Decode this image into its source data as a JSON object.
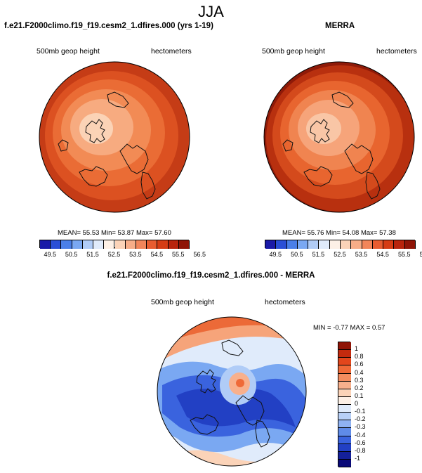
{
  "season": "JJA",
  "panels": {
    "model": {
      "title": "f.e21.F2000climo.f19_f19.cesm2_1.dfires.000 (yrs 1-19)",
      "field_label": "500mb geop height",
      "units_label": "hectometers",
      "stats": "MEAN=  55.53   Min=  53.87   Max=  57.60"
    },
    "obs": {
      "title": "MERRA",
      "field_label": "500mb geop height",
      "units_label": "hectometers",
      "stats": "MEAN=  55.76   Min=  54.08   Max=  57.38"
    },
    "diff": {
      "title": "f.e21.F2000climo.f19_f19.cesm2_1.dfires.000 - MERRA",
      "field_label": "500mb geop height",
      "units_label": "hectometers",
      "stats": "MIN =  -0.77  MAX =   0.57"
    }
  },
  "colorbar_abs": {
    "ticks": [
      "49.5",
      "50.5",
      "51.5",
      "52.5",
      "53.5",
      "54.5",
      "55.5",
      "56.5"
    ],
    "colors": [
      "#1a1aa8",
      "#2a4fd6",
      "#4a7fe8",
      "#7aa8f2",
      "#b0ccf7",
      "#e0ebfb",
      "#fdf0e6",
      "#fbd3b8",
      "#f7ad88",
      "#f2855a",
      "#e85c30",
      "#d53c14",
      "#b8240c",
      "#8f1406"
    ]
  },
  "colorbar_diff": {
    "ticks": [
      "1",
      "0.8",
      "0.6",
      "0.4",
      "0.3",
      "0.2",
      "0.1",
      "0",
      "-0.1",
      "-0.2",
      "-0.3",
      "-0.4",
      "-0.6",
      "-0.8",
      "-1"
    ],
    "colors": [
      "#8f1406",
      "#c32a0e",
      "#e2461c",
      "#ef6a38",
      "#f48d5f",
      "#f8b08c",
      "#fbd3b8",
      "#fdf0e6",
      "#e0ebfb",
      "#b8d0f7",
      "#8fb2f2",
      "#5f8be8",
      "#3a63de",
      "#2240c4",
      "#14209a",
      "#0a0a78"
    ]
  }
}
